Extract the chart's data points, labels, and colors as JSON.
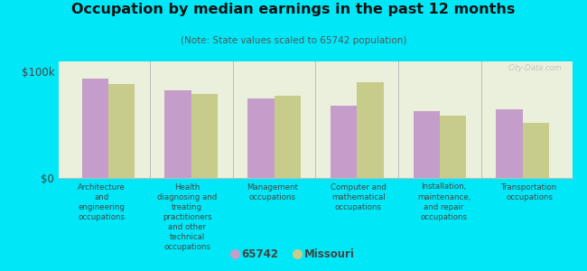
{
  "title": "Occupation by median earnings in the past 12 months",
  "subtitle": "(Note: State values scaled to 65742 population)",
  "categories": [
    "Architecture\nand\nengineering\noccupations",
    "Health\ndiagnosing and\ntreating\npractitioners\nand other\ntechnical\noccupations",
    "Management\noccupations",
    "Computer and\nmathematical\noccupations",
    "Installation,\nmaintenance,\nand repair\noccupations",
    "Transportation\noccupations"
  ],
  "values_65742": [
    93000,
    82000,
    75000,
    68000,
    63000,
    64000
  ],
  "values_missouri": [
    88000,
    79000,
    77000,
    90000,
    58000,
    52000
  ],
  "color_65742": "#c49dca",
  "color_missouri": "#c8cc8a",
  "background_outer": "#00e8f8",
  "background_plot": "#eaf0dc",
  "ylim": [
    0,
    110000
  ],
  "ytick_labels": [
    "$0",
    "$100k"
  ],
  "ytick_values": [
    0,
    100000
  ],
  "legend_65742": "65742",
  "legend_missouri": "Missouri",
  "bar_width": 0.32,
  "watermark": "City-Data.com"
}
